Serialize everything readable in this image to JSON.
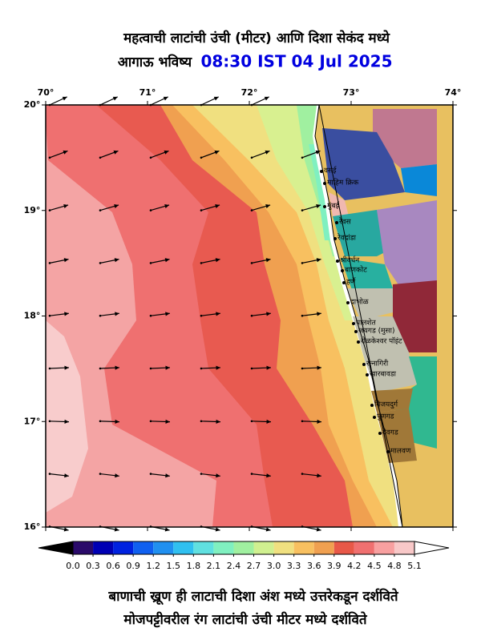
{
  "title": {
    "line1": "महत्वाची लाटांची उंची (मीटर) आणि दिशा सेकंद मध्ये",
    "line2": "आगाऊ भविष्य",
    "datetime": "08:30 IST 04 Jul 2025"
  },
  "map": {
    "lon_ticks": [
      {
        "value": 70,
        "label": "70°"
      },
      {
        "value": 71,
        "label": "71°"
      },
      {
        "value": 72,
        "label": "72°"
      },
      {
        "value": 73,
        "label": "73°"
      },
      {
        "value": 74,
        "label": "74°"
      }
    ],
    "lat_ticks": [
      {
        "value": 20,
        "label": "20°"
      },
      {
        "value": 19,
        "label": "19°"
      },
      {
        "value": 18,
        "label": "18°"
      },
      {
        "value": 17,
        "label": "17°"
      },
      {
        "value": 16,
        "label": "16°"
      }
    ],
    "places": [
      "वसई",
      "माहिम क्रिक",
      "मुंबई",
      "रेवस",
      "रेवदांडा",
      "श्रीवर्धन",
      "बाणकोट",
      "हर्णे",
      "दाभोळ",
      "पालशेत",
      "जयगड (मुसा)",
      "रोळकेश्वर पॉइंट",
      "रत्नागिरी",
      "खारबावडा",
      "विजयदुर्ग",
      "पुणगड",
      "देवगड",
      "मालवण"
    ]
  },
  "colorbar": {
    "ticks": [
      {
        "value": 0,
        "label": "0.0"
      },
      {
        "value": 0.3,
        "label": "0.3"
      },
      {
        "value": 0.6,
        "label": "0.6"
      },
      {
        "value": 0.9,
        "label": "0.9"
      },
      {
        "value": 1.2,
        "label": "1.2"
      },
      {
        "value": 1.5,
        "label": "1.5"
      },
      {
        "value": 1.8,
        "label": "1.8"
      },
      {
        "value": 2.1,
        "label": "2.1"
      },
      {
        "value": 2.4,
        "label": "2.4"
      },
      {
        "value": 2.7,
        "label": "2.7"
      },
      {
        "value": 3,
        "label": "3.0"
      },
      {
        "value": 3.3,
        "label": "3.3"
      },
      {
        "value": 3.6,
        "label": "3.6"
      },
      {
        "value": 3.9,
        "label": "3.9"
      },
      {
        "value": 4.2,
        "label": "4.2"
      },
      {
        "value": 4.5,
        "label": "4.5"
      },
      {
        "value": 4.8,
        "label": "4.8"
      },
      {
        "value": 5.1,
        "label": "5.1"
      }
    ],
    "colors": [
      "#2a0a6a",
      "#0000b4",
      "#0022e0",
      "#1060f0",
      "#2090f0",
      "#30c0f0",
      "#60e0e0",
      "#80f0c0",
      "#a0f0a0",
      "#d0f090",
      "#f0e080",
      "#f8c060",
      "#f0a050",
      "#e85848",
      "#f07070",
      "#f8a0a0",
      "#f8c8c8"
    ]
  },
  "footer": {
    "line1": "बाणाची ख्रूण ही लाटाची दिशा अंश मध्ये उत्तरेकडून दर्शविते",
    "line2": "मोजपट्टीवरील रंग लाटांची उंची मीटर मध्ये दर्शविते"
  }
}
